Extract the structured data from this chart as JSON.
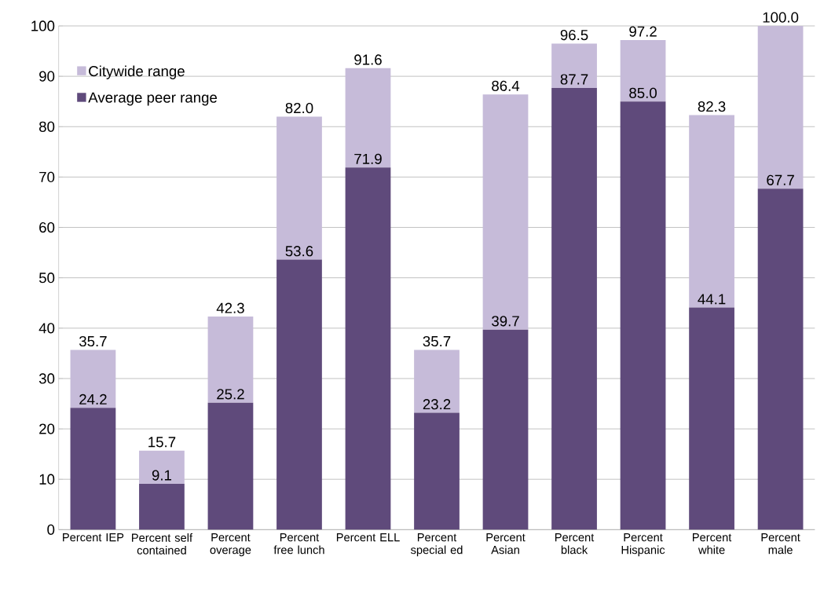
{
  "chart_data": {
    "type": "bar",
    "stacked": true,
    "categories": [
      "Percent IEP",
      "Percent self contained",
      "Percent overage",
      "Percent free lunch",
      "Percent ELL",
      "Percent special ed",
      "Percent Asian",
      "Percent black",
      "Percent Hispanic",
      "Percent white",
      "Percent male"
    ],
    "series": [
      {
        "name": "Average peer range",
        "color": "#5f4a7b",
        "values": [
          24.2,
          9.1,
          25.2,
          53.6,
          71.9,
          23.2,
          39.7,
          87.7,
          85.0,
          44.1,
          67.7
        ],
        "value_labels": [
          "24.2",
          "9.1",
          "25.2",
          "53.6",
          "71.9",
          "23.2",
          "39.7",
          "87.7",
          "85.0",
          "44.1",
          "67.7"
        ]
      },
      {
        "name": "Citywide range",
        "color": "#c6bbd9",
        "values": [
          11.5,
          6.6,
          17.1,
          28.4,
          19.7,
          12.5,
          46.7,
          8.8,
          12.2,
          38.2,
          32.3
        ]
      }
    ],
    "totals": [
      "35.7",
      "15.7",
      "42.3",
      "82.0",
      "91.6",
      "35.7",
      "86.4",
      "96.5",
      "97.2",
      "82.3",
      "100.0"
    ],
    "ylim": [
      0,
      100
    ],
    "yticks": [
      0,
      10,
      20,
      30,
      40,
      50,
      60,
      70,
      80,
      90,
      100
    ],
    "grid": "y",
    "legend": "top left"
  }
}
